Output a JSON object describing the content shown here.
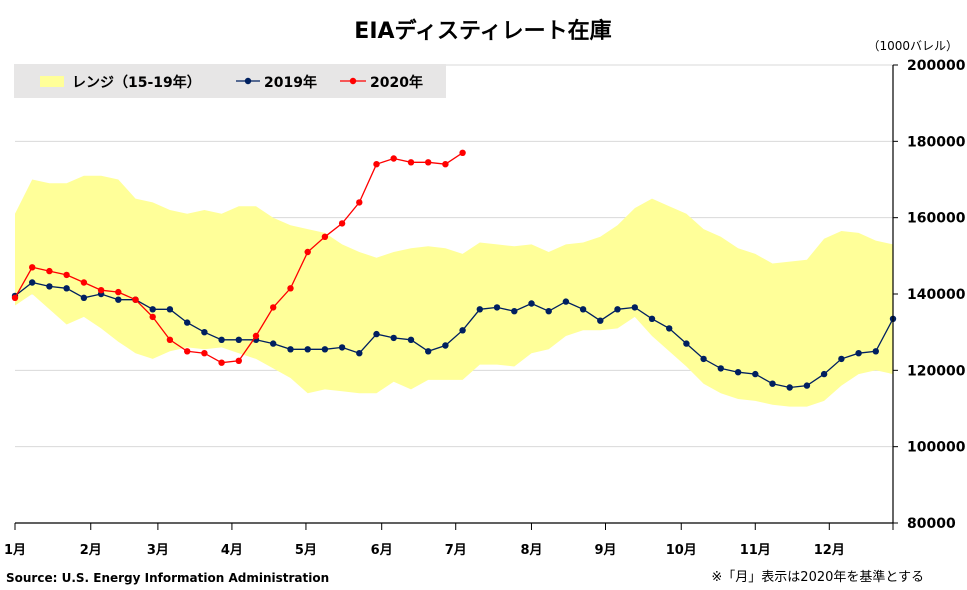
{
  "chart_data": {
    "type": "line",
    "title": "EIAディスティレート在庫",
    "unit_label": "（1000バレル）",
    "ylim": [
      80000,
      200000
    ],
    "yticks": [
      80000,
      100000,
      120000,
      140000,
      160000,
      180000,
      200000
    ],
    "ytick_labels": [
      "80000",
      "100000",
      "120000",
      "140000",
      "160000",
      "180000",
      "200000"
    ],
    "grid": true,
    "month_labels": [
      "1月",
      "2月",
      "3月",
      "4月",
      "5月",
      "6月",
      "7月",
      "8月",
      "9月",
      "10月",
      "11月",
      "12月"
    ],
    "x_weeks": 52,
    "legend_position": "top-left",
    "legend": {
      "range": "レンジ（15-19年）",
      "s2019": "2019年",
      "s2020": "2020年"
    },
    "colors": {
      "range": "#ffff99",
      "s2019": "#002060",
      "s2020": "#ff0000",
      "grid": "#d9d9d9",
      "legend_bg": "#e7e6e6"
    },
    "range_upper": [
      161000,
      170000,
      169000,
      169000,
      171000,
      171000,
      170000,
      165000,
      164000,
      162000,
      161000,
      162000,
      161000,
      163000,
      163000,
      160000,
      158000,
      157000,
      156000,
      153000,
      151000,
      149500,
      151000,
      152000,
      152500,
      152000,
      150500,
      153500,
      153000,
      152500,
      153000,
      151000,
      153000,
      153500,
      155000,
      158000,
      162500,
      165000,
      163000,
      161000,
      157000,
      155000,
      152000,
      150500,
      148000,
      148500,
      149000,
      154500,
      156500,
      156000,
      154000,
      153000
    ],
    "range_lower": [
      137000,
      140000,
      136000,
      132000,
      134000,
      131000,
      127500,
      124500,
      123000,
      125000,
      126000,
      125500,
      126000,
      124500,
      123000,
      120500,
      118000,
      114000,
      115000,
      114500,
      114000,
      114000,
      117000,
      115000,
      117500,
      117500,
      117500,
      121500,
      121500,
      121000,
      124500,
      125500,
      129000,
      130500,
      130500,
      131000,
      134000,
      129000,
      125000,
      121000,
      116500,
      114000,
      112500,
      112000,
      111000,
      110500,
      110500,
      112000,
      116000,
      119000,
      120000,
      119000
    ],
    "series": [
      {
        "name": "2019年",
        "values": [
          139500,
          143000,
          142000,
          141500,
          139000,
          140000,
          138500,
          138500,
          136000,
          136000,
          132500,
          130000,
          128000,
          128000,
          128000,
          127000,
          125500,
          125500,
          125500,
          126000,
          124500,
          129500,
          128500,
          128000,
          125000,
          126500,
          130500,
          136000,
          136500,
          135500,
          137500,
          135500,
          138000,
          136000,
          133000,
          136000,
          136500,
          133500,
          131000,
          127000,
          123000,
          120500,
          119500,
          119000,
          116500,
          115500,
          116000,
          119000,
          123000,
          124500,
          125000,
          133500
        ]
      },
      {
        "name": "2020年",
        "values": [
          139000,
          147000,
          146000,
          145000,
          143000,
          141000,
          140500,
          138500,
          134000,
          128000,
          125000,
          124500,
          122000,
          122500,
          129000,
          136500,
          141500,
          151000,
          155000,
          158500,
          164000,
          174000,
          175500,
          174500,
          174500,
          174000,
          177000
        ]
      }
    ]
  },
  "source": "Source: U.S. Energy Information Administration",
  "note": "※「月」表示は2020年を基準とする"
}
